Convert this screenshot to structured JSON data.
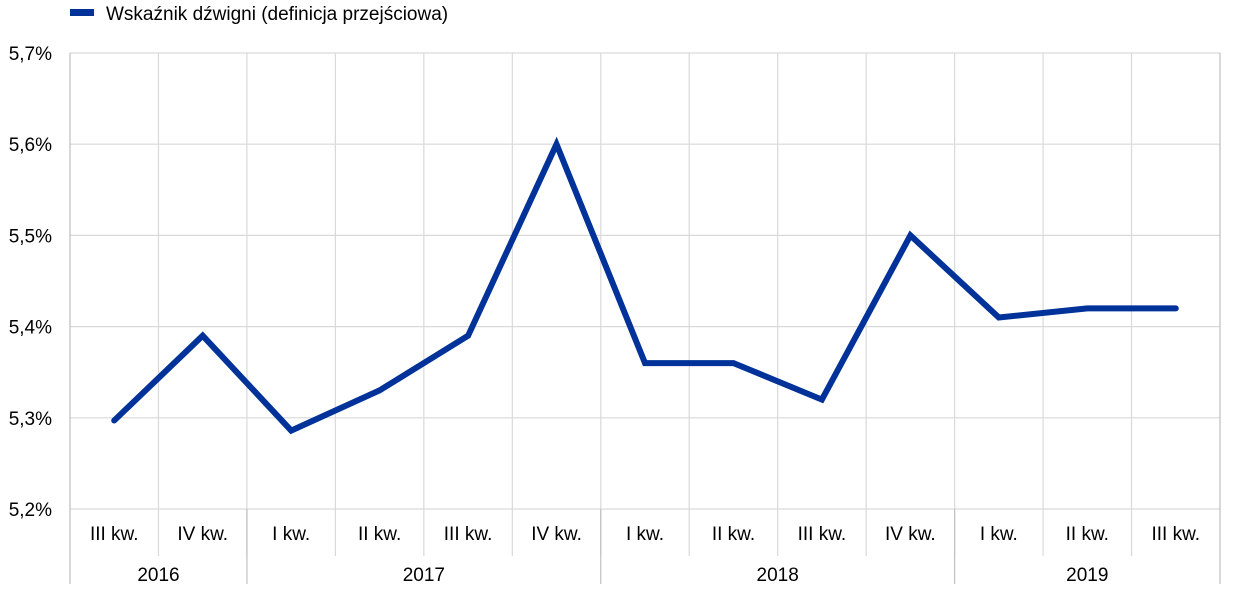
{
  "chart_data": {
    "type": "line",
    "title": "",
    "xlabel": "",
    "ylabel": "",
    "ylim": [
      5.2,
      5.7
    ],
    "yticks": [
      "5,2%",
      "5,3%",
      "5,4%",
      "5,5%",
      "5,6%",
      "5,7%"
    ],
    "yticks_values": [
      5.2,
      5.3,
      5.4,
      5.5,
      5.6,
      5.7
    ],
    "categories": [
      "III kw.",
      "IV kw.",
      "I kw.",
      "II kw.",
      "III kw.",
      "IV kw.",
      "I kw.",
      "II kw.",
      "III kw.",
      "IV kw.",
      "I kw.",
      "II kw.",
      "III kw."
    ],
    "year_groups": [
      {
        "label": "2016",
        "count": 2
      },
      {
        "label": "2017",
        "count": 4
      },
      {
        "label": "2018",
        "count": 4
      },
      {
        "label": "2019",
        "count": 3
      }
    ],
    "series": [
      {
        "name": "Wskaźnik dźwigni (definicja przejściowa)",
        "values": [
          5.297,
          5.39,
          5.286,
          5.33,
          5.39,
          5.6,
          5.36,
          5.36,
          5.32,
          5.5,
          5.41,
          5.42,
          5.42
        ]
      }
    ],
    "grid": true,
    "legend": "top-left",
    "colors": {
      "series": "#003299",
      "grid": "#d9d9d9",
      "axis": "#bfbfbf"
    }
  }
}
